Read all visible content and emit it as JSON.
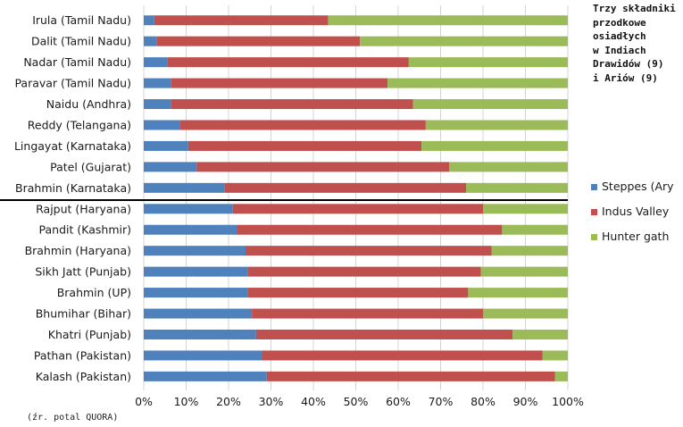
{
  "note_lines": [
    "Trzy składniki",
    "przodkowe",
    "osiadłych",
    "w Indiach",
    "Drawidów (9)",
    "i Ariów (9)"
  ],
  "source": "(źr. potal QUORA)",
  "colors": {
    "steppes": "#4f81bd",
    "indus": "#c0504d",
    "hunter": "#9bbb59"
  },
  "chart_data": {
    "type": "bar",
    "orientation": "horizontal",
    "stacked": true,
    "normalized": true,
    "categories": [
      "Irula (Tamil Nadu)",
      "Dalit (Tamil Nadu)",
      "Nadar (Tamil Nadu)",
      "Paravar (Tamil Nadu)",
      "Naidu (Andhra)",
      "Reddy (Telangana)",
      "Lingayat (Karnataka)",
      "Patel (Gujarat)",
      "Brahmin (Karnataka)",
      "Rajput (Haryana)",
      "Pandit (Kashmir)",
      "Brahmin (Haryana)",
      "Sikh Jatt (Punjab)",
      "Brahmin (UP)",
      "Bhumihar (Bihar)",
      "Khatri (Punjab)",
      "Pathan (Pakistan)",
      "Kalash (Pakistan)"
    ],
    "series": [
      {
        "name": "Steppes (Ary",
        "values": [
          2.5,
          3,
          5.5,
          6.5,
          6.5,
          8.5,
          10.5,
          12.5,
          19,
          21,
          22,
          24,
          24.5,
          24.5,
          25.5,
          26.5,
          28,
          29
        ]
      },
      {
        "name": "Indus Valley",
        "values": [
          41,
          48,
          57,
          51,
          57,
          58,
          55,
          59.5,
          57,
          59,
          62.5,
          58,
          55,
          52,
          54.5,
          60.5,
          66,
          68
        ]
      },
      {
        "name": "Hunter gath",
        "values": [
          56.5,
          49,
          37.5,
          42.5,
          36.5,
          33.5,
          34.5,
          28,
          24,
          20,
          15.5,
          18,
          20.5,
          23.5,
          20,
          13,
          6,
          3
        ]
      }
    ],
    "xlim": [
      0,
      100
    ],
    "x_ticks": [
      "0%",
      "10%",
      "20%",
      "30%",
      "40%",
      "50%",
      "60%",
      "70%",
      "80%",
      "90%",
      "100%"
    ],
    "grid": "vertical",
    "legend": "right",
    "divider_after_category": "Brahmin (Karnataka)"
  }
}
